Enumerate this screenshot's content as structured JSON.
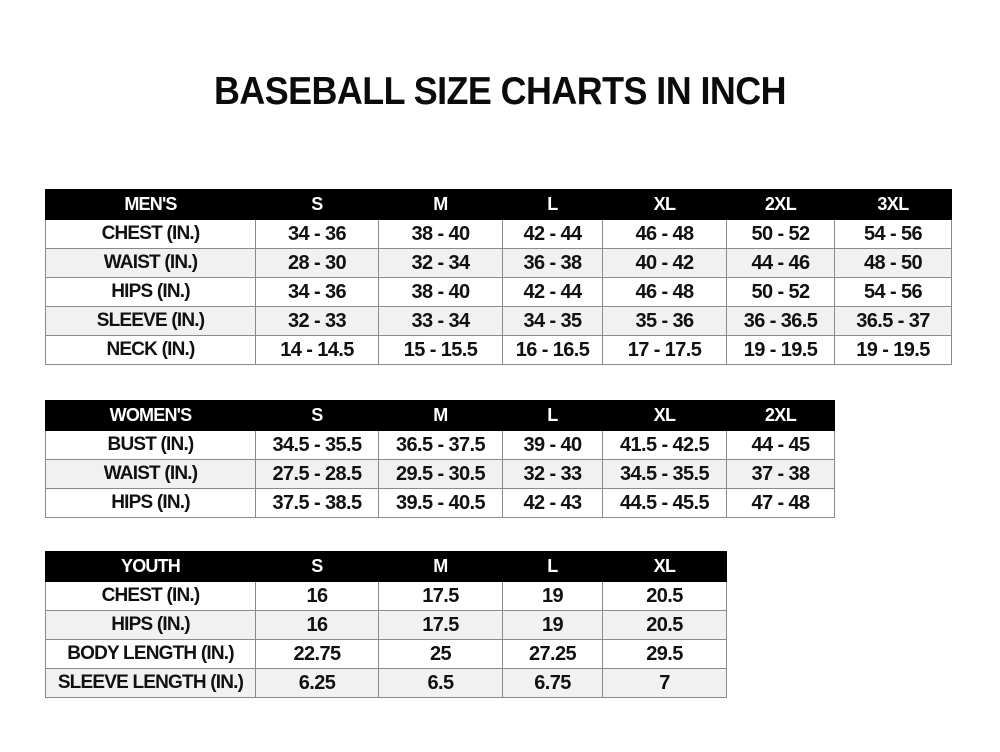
{
  "title": "BASEBALL SIZE CHARTS IN INCH",
  "tables": [
    {
      "id": "men",
      "header": [
        "MEN'S",
        "S",
        "M",
        "L",
        "XL",
        "2XL",
        "3XL"
      ],
      "rows": [
        [
          "CHEST (IN.)",
          "34 - 36",
          "38 - 40",
          "42 - 44",
          "46 - 48",
          "50 - 52",
          "54 - 56"
        ],
        [
          "WAIST (IN.)",
          "28 - 30",
          "32 - 34",
          "36 - 38",
          "40 - 42",
          "44 - 46",
          "48 - 50"
        ],
        [
          "HIPS (IN.)",
          "34 - 36",
          "38 - 40",
          "42 - 44",
          "46 - 48",
          "50 - 52",
          "54 - 56"
        ],
        [
          "SLEEVE (IN.)",
          "32 - 33",
          "33 - 34",
          "34 - 35",
          "35 - 36",
          "36 - 36.5",
          "36.5 - 37"
        ],
        [
          "NECK (IN.)",
          "14 - 14.5",
          "15 - 15.5",
          "16 - 16.5",
          "17 - 17.5",
          "19 - 19.5",
          "19 - 19.5"
        ]
      ]
    },
    {
      "id": "women",
      "header": [
        "WOMEN'S",
        "S",
        "M",
        "L",
        "XL",
        "2XL"
      ],
      "rows": [
        [
          "BUST (IN.)",
          "34.5 - 35.5",
          "36.5 - 37.5",
          "39 - 40",
          "41.5 - 42.5",
          "44 - 45"
        ],
        [
          "WAIST (IN.)",
          "27.5 - 28.5",
          "29.5 - 30.5",
          "32 - 33",
          "34.5 - 35.5",
          "37 - 38"
        ],
        [
          "HIPS (IN.)",
          "37.5 - 38.5",
          "39.5 - 40.5",
          "42 - 43",
          "44.5 - 45.5",
          "47 - 48"
        ]
      ]
    },
    {
      "id": "youth",
      "header": [
        "YOUTH",
        "S",
        "M",
        "L",
        "XL"
      ],
      "rows": [
        [
          "CHEST (IN.)",
          "16",
          "17.5",
          "19",
          "20.5"
        ],
        [
          "HIPS (IN.)",
          "16",
          "17.5",
          "19",
          "20.5"
        ],
        [
          "BODY LENGTH (IN.)",
          "22.75",
          "25",
          "27.25",
          "29.5"
        ],
        [
          "SLEEVE LENGTH (IN.)",
          "6.25",
          "6.5",
          "6.75",
          "7"
        ]
      ]
    }
  ]
}
